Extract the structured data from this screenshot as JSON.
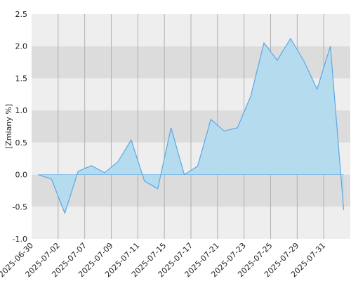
{
  "chart_data": {
    "type": "area",
    "y_label": "[Zmiany %]",
    "categories": [
      "2025-06-30",
      null,
      "2025-07-02",
      null,
      "2025-07-07",
      null,
      "2025-07-09",
      null,
      "2025-07-11",
      null,
      "2025-07-15",
      null,
      "2025-07-17",
      null,
      "2025-07-21",
      null,
      "2025-07-23",
      null,
      "2025-07-25",
      null,
      "2025-07-29",
      null,
      "2025-07-31",
      null
    ],
    "values": [
      0.0,
      -0.07,
      -0.6,
      0.05,
      0.14,
      0.03,
      0.2,
      0.54,
      -0.1,
      -0.22,
      0.73,
      0.0,
      0.13,
      0.86,
      0.68,
      0.73,
      1.22,
      2.05,
      1.78,
      2.12,
      1.77,
      1.33,
      2.0,
      -0.55
    ],
    "color": "#5ba8e6",
    "fill_color": "#b5dcee",
    "ylim": [
      -1.0,
      2.5
    ],
    "yticks": [
      {
        "value": -1,
        "label": "-1.0"
      },
      -0.5,
      {
        "value": 0,
        "label": "0.0"
      },
      0.5,
      {
        "value": 1,
        "label": "1.0"
      },
      1.5,
      {
        "value": 2,
        "label": "2.0"
      },
      2.5
    ],
    "grid": true
  }
}
